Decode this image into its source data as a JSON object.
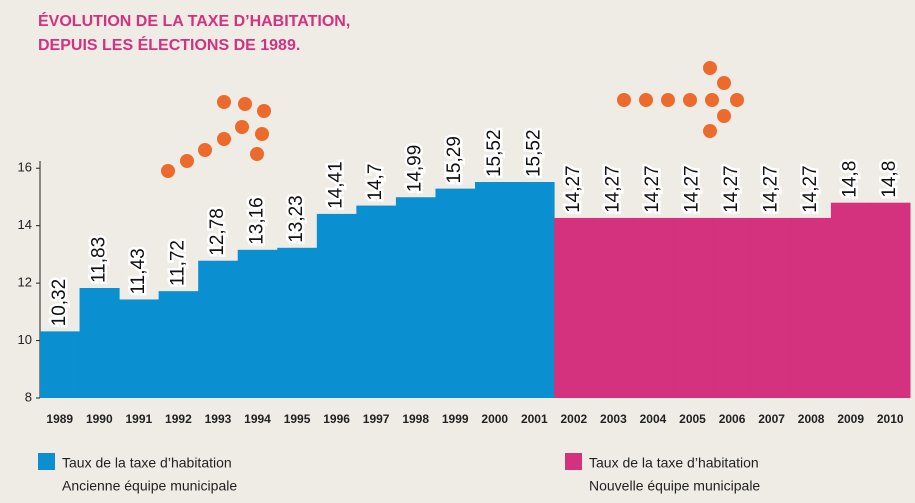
{
  "chart_data": {
    "type": "bar",
    "title": "ÉVOLUTION DE LA TAXE D’HABITATION,",
    "subtitle": "DEPUIS LES ÉLECTIONS DE 1989.",
    "categories": [
      "1989",
      "1990",
      "1991",
      "1992",
      "1993",
      "1994",
      "1995",
      "1996",
      "1997",
      "1998",
      "1999",
      "2000",
      "2001",
      "2002",
      "2003",
      "2004",
      "2005",
      "2006",
      "2007",
      "2008",
      "2009",
      "2010"
    ],
    "series": [
      {
        "name": "Taux de la taxe d’habitation",
        "team": "Ancienne équipe municipale",
        "color": "#0a8fd0",
        "values": [
          10.32,
          11.83,
          11.43,
          11.72,
          12.78,
          13.16,
          13.23,
          14.41,
          14.7,
          14.99,
          15.29,
          15.52,
          15.52,
          null,
          null,
          null,
          null,
          null,
          null,
          null,
          null,
          null
        ],
        "value_labels": [
          "10,32",
          "11,83",
          "11,43",
          "11,72",
          "12,78",
          "13,16",
          "13,23",
          "14,41",
          "14,7",
          "14,99",
          "15,29",
          "15,52",
          "15,52",
          null,
          null,
          null,
          null,
          null,
          null,
          null,
          null,
          null
        ]
      },
      {
        "name": "Taux de la taxe d’habitation",
        "team": "Nouvelle équipe municipale",
        "color": "#d4317f",
        "values": [
          null,
          null,
          null,
          null,
          null,
          null,
          null,
          null,
          null,
          null,
          null,
          null,
          null,
          14.27,
          14.27,
          14.27,
          14.27,
          14.27,
          14.27,
          14.27,
          14.8,
          14.8
        ],
        "value_labels": [
          null,
          null,
          null,
          null,
          null,
          null,
          null,
          null,
          null,
          null,
          null,
          null,
          null,
          "14,27",
          "14,27",
          "14,27",
          "14,27",
          "14,27",
          "14,27",
          "14,27",
          "14,8",
          "14,8"
        ]
      }
    ],
    "ylim": [
      8,
      16.6
    ],
    "yticks": [
      8,
      10,
      12,
      14,
      16
    ]
  }
}
